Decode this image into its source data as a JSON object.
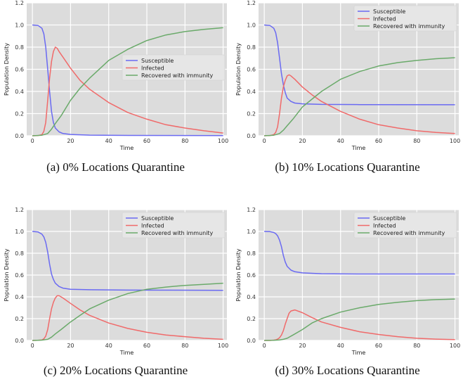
{
  "colors": {
    "susceptible": "#6a6af2",
    "infected": "#f06a6a",
    "recovered": "#6aaa6a",
    "plot_bg": "#dcdcdc",
    "grid": "#ffffff"
  },
  "chart_data": [
    {
      "type": "line",
      "caption": "(a) 0% Locations Quarantine",
      "xlabel": "Time",
      "ylabel": "Population Density",
      "xlim": [
        -3,
        102
      ],
      "ylim": [
        0,
        1.2
      ],
      "xticks": [
        "0",
        "20",
        "40",
        "60",
        "80",
        "100"
      ],
      "yticks": [
        "0.0",
        "0.2",
        "0.4",
        "0.6",
        "0.8",
        "1.0",
        "1.2"
      ],
      "grid": true,
      "legend_position": "center-right",
      "series": [
        {
          "name": "Susceptible",
          "key": "S",
          "x": [
            0,
            3,
            5,
            6,
            7,
            8,
            9,
            10,
            11,
            12,
            14,
            16,
            20,
            30,
            50,
            100
          ],
          "y": [
            1.0,
            0.995,
            0.97,
            0.92,
            0.8,
            0.6,
            0.4,
            0.22,
            0.12,
            0.07,
            0.035,
            0.02,
            0.012,
            0.006,
            0.003,
            0.001
          ]
        },
        {
          "name": "Infected",
          "key": "I",
          "x": [
            0,
            3,
            5,
            6,
            7,
            8,
            9,
            10,
            11,
            12,
            13,
            14,
            16,
            20,
            25,
            30,
            40,
            50,
            60,
            70,
            80,
            90,
            100
          ],
          "y": [
            0.0,
            0.002,
            0.01,
            0.04,
            0.12,
            0.32,
            0.52,
            0.67,
            0.76,
            0.8,
            0.79,
            0.76,
            0.71,
            0.61,
            0.5,
            0.42,
            0.3,
            0.21,
            0.15,
            0.1,
            0.07,
            0.045,
            0.025
          ]
        },
        {
          "name": "Recovered with immunity",
          "key": "R",
          "x": [
            0,
            5,
            8,
            10,
            12,
            15,
            20,
            25,
            30,
            40,
            50,
            60,
            70,
            80,
            90,
            100
          ],
          "y": [
            0.0,
            0.005,
            0.02,
            0.06,
            0.11,
            0.18,
            0.32,
            0.43,
            0.52,
            0.68,
            0.78,
            0.86,
            0.91,
            0.94,
            0.96,
            0.975
          ]
        }
      ]
    },
    {
      "type": "line",
      "caption": "(b) 10% Locations Quarantine",
      "xlabel": "Time",
      "ylabel": "Population Density",
      "xlim": [
        -3,
        102
      ],
      "ylim": [
        0,
        1.2
      ],
      "xticks": [
        "0",
        "20",
        "40",
        "60",
        "80",
        "100"
      ],
      "yticks": [
        "0.0",
        "0.2",
        "0.4",
        "0.6",
        "0.8",
        "1.0",
        "1.2"
      ],
      "grid": true,
      "legend_position": "top-right",
      "series": [
        {
          "name": "Susceptible",
          "key": "S",
          "x": [
            0,
            3,
            5,
            6,
            7,
            8,
            9,
            10,
            11,
            12,
            14,
            16,
            20,
            30,
            50,
            100
          ],
          "y": [
            1.0,
            0.995,
            0.97,
            0.93,
            0.84,
            0.7,
            0.56,
            0.46,
            0.39,
            0.34,
            0.31,
            0.295,
            0.288,
            0.283,
            0.281,
            0.28
          ]
        },
        {
          "name": "Infected",
          "key": "I",
          "x": [
            0,
            3,
            5,
            6,
            7,
            8,
            9,
            10,
            11,
            12,
            13,
            14,
            16,
            20,
            25,
            30,
            40,
            50,
            60,
            70,
            80,
            90,
            100
          ],
          "y": [
            0.0,
            0.002,
            0.01,
            0.03,
            0.08,
            0.2,
            0.34,
            0.44,
            0.5,
            0.54,
            0.55,
            0.54,
            0.51,
            0.44,
            0.37,
            0.31,
            0.22,
            0.15,
            0.1,
            0.07,
            0.045,
            0.03,
            0.02
          ]
        },
        {
          "name": "Recovered with immunity",
          "key": "R",
          "x": [
            0,
            5,
            8,
            10,
            12,
            15,
            20,
            25,
            30,
            40,
            50,
            60,
            70,
            80,
            90,
            100
          ],
          "y": [
            0.0,
            0.005,
            0.02,
            0.05,
            0.09,
            0.15,
            0.26,
            0.33,
            0.4,
            0.51,
            0.58,
            0.63,
            0.66,
            0.68,
            0.695,
            0.705
          ]
        }
      ]
    },
    {
      "type": "line",
      "caption": "(c) 20% Locations Quarantine",
      "xlabel": "Time",
      "ylabel": "Population Density",
      "xlim": [
        -3,
        102
      ],
      "ylim": [
        0,
        1.2
      ],
      "xticks": [
        "0",
        "20",
        "40",
        "60",
        "80",
        "100"
      ],
      "yticks": [
        "0.0",
        "0.2",
        "0.4",
        "0.6",
        "0.8",
        "1.0",
        "1.2"
      ],
      "grid": true,
      "legend_position": "top-right",
      "series": [
        {
          "name": "Susceptible",
          "key": "S",
          "x": [
            0,
            3,
            5,
            6,
            7,
            8,
            9,
            10,
            11,
            12,
            14,
            16,
            20,
            30,
            50,
            100
          ],
          "y": [
            1.0,
            0.995,
            0.975,
            0.95,
            0.9,
            0.81,
            0.7,
            0.61,
            0.56,
            0.525,
            0.495,
            0.48,
            0.47,
            0.465,
            0.462,
            0.46
          ]
        },
        {
          "name": "Infected",
          "key": "I",
          "x": [
            0,
            3,
            5,
            6,
            7,
            8,
            9,
            10,
            11,
            12,
            13,
            14,
            16,
            20,
            25,
            30,
            40,
            50,
            60,
            70,
            80,
            90,
            100
          ],
          "y": [
            0.0,
            0.002,
            0.005,
            0.015,
            0.04,
            0.1,
            0.2,
            0.29,
            0.35,
            0.39,
            0.41,
            0.41,
            0.39,
            0.34,
            0.28,
            0.23,
            0.16,
            0.11,
            0.075,
            0.05,
            0.035,
            0.02,
            0.01
          ]
        },
        {
          "name": "Recovered with immunity",
          "key": "R",
          "x": [
            0,
            5,
            8,
            10,
            12,
            15,
            20,
            25,
            30,
            40,
            50,
            60,
            70,
            80,
            90,
            100
          ],
          "y": [
            0.0,
            0.003,
            0.01,
            0.03,
            0.06,
            0.1,
            0.17,
            0.23,
            0.29,
            0.37,
            0.43,
            0.47,
            0.49,
            0.505,
            0.515,
            0.525
          ]
        }
      ]
    },
    {
      "type": "line",
      "caption": "(d) 30% Locations Quarantine",
      "xlabel": "Time",
      "ylabel": "Population Density",
      "xlim": [
        -3,
        102
      ],
      "ylim": [
        0,
        1.2
      ],
      "xticks": [
        "0",
        "20",
        "40",
        "60",
        "80",
        "100"
      ],
      "yticks": [
        "0.0",
        "0.2",
        "0.4",
        "0.6",
        "0.8",
        "1.0",
        "1.2"
      ],
      "grid": true,
      "legend_position": "top-right",
      "series": [
        {
          "name": "Susceptible",
          "key": "S",
          "x": [
            0,
            3,
            5,
            6,
            7,
            8,
            9,
            10,
            11,
            12,
            14,
            16,
            20,
            30,
            50,
            100
          ],
          "y": [
            1.0,
            0.998,
            0.99,
            0.98,
            0.96,
            0.92,
            0.86,
            0.78,
            0.72,
            0.68,
            0.645,
            0.63,
            0.62,
            0.612,
            0.61,
            0.61
          ]
        },
        {
          "name": "Infected",
          "key": "I",
          "x": [
            0,
            3,
            5,
            6,
            7,
            8,
            9,
            10,
            11,
            12,
            13,
            14,
            16,
            20,
            25,
            30,
            40,
            50,
            60,
            70,
            80,
            90,
            100
          ],
          "y": [
            0.0,
            0.0,
            0.003,
            0.006,
            0.012,
            0.025,
            0.05,
            0.09,
            0.15,
            0.2,
            0.25,
            0.27,
            0.28,
            0.255,
            0.21,
            0.17,
            0.12,
            0.08,
            0.055,
            0.035,
            0.02,
            0.012,
            0.008
          ]
        },
        {
          "name": "Recovered with immunity",
          "key": "R",
          "x": [
            0,
            5,
            8,
            10,
            12,
            15,
            20,
            25,
            30,
            40,
            50,
            60,
            70,
            80,
            90,
            100
          ],
          "y": [
            0.0,
            0.002,
            0.005,
            0.01,
            0.02,
            0.05,
            0.1,
            0.16,
            0.2,
            0.26,
            0.3,
            0.33,
            0.35,
            0.365,
            0.375,
            0.38
          ]
        }
      ]
    }
  ]
}
